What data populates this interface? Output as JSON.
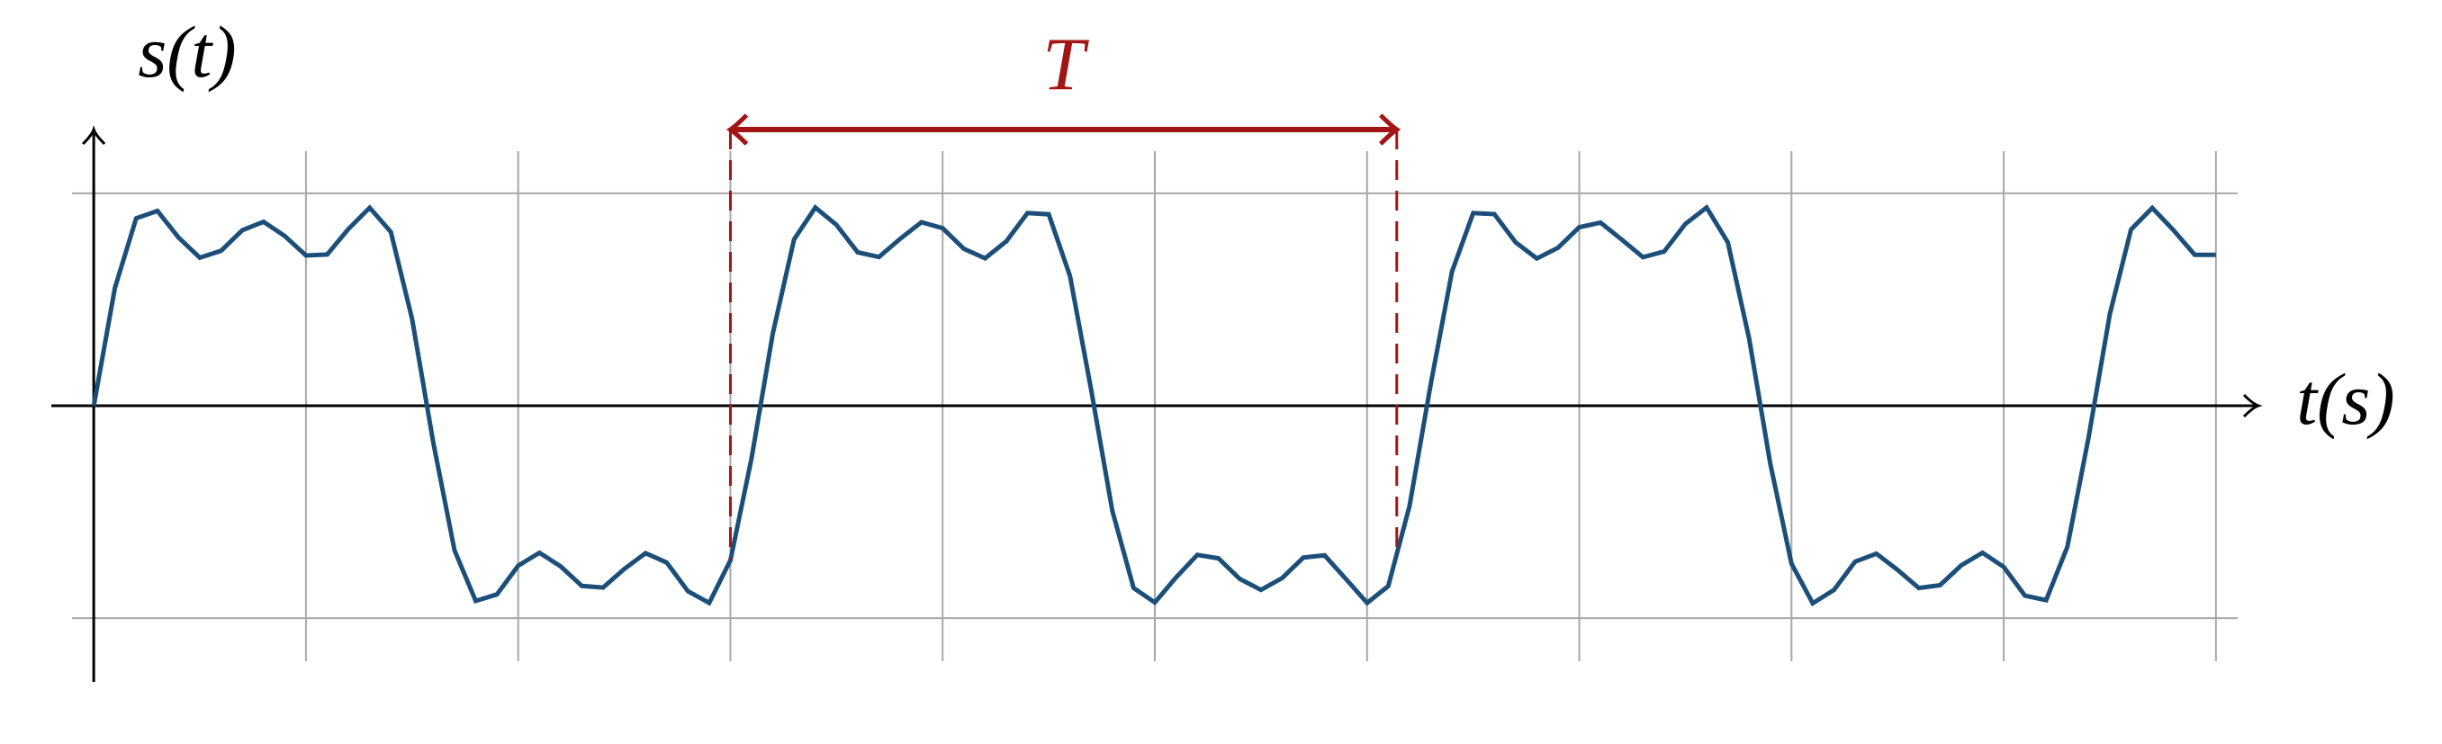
{
  "chart_data": {
    "type": "line",
    "y_label": "s(t)",
    "x_label": "t(s)",
    "annotation": {
      "text": "T",
      "x": [
        3,
        6.14
      ],
      "color": "#a31515"
    },
    "color": "#1b4f7a",
    "xlim": [
      -0.2,
      10.2
    ],
    "ylim": [
      -1.3,
      1.3
    ],
    "xticks": [
      1,
      2,
      3,
      4,
      5,
      6,
      7,
      8,
      9,
      10
    ],
    "yticks": [
      -1,
      1
    ],
    "grid": true,
    "x": [
      0,
      0.1,
      0.2,
      0.3,
      0.4,
      0.5,
      0.6,
      0.7,
      0.8,
      0.9,
      1,
      1.1,
      1.2,
      1.3,
      1.4,
      1.5,
      1.6,
      1.7,
      1.8,
      1.9,
      2,
      2.1,
      2.2,
      2.3,
      2.4,
      2.5,
      2.6,
      2.7,
      2.8,
      2.9,
      3,
      3.1,
      3.2,
      3.3,
      3.4,
      3.5,
      3.6,
      3.7,
      3.8,
      3.9,
      4,
      4.1,
      4.2,
      4.3,
      4.4,
      4.5,
      4.6,
      4.7,
      4.8,
      4.9,
      5,
      5.1,
      5.2,
      5.3,
      5.4,
      5.5,
      5.6,
      5.7,
      5.8,
      5.9,
      6,
      6.1,
      6.2,
      6.3,
      6.4,
      6.5,
      6.6,
      6.7,
      6.8,
      6.9,
      7,
      7.1,
      7.2,
      7.3,
      7.4,
      7.5,
      7.6,
      7.7,
      7.8,
      7.9,
      8,
      8.1,
      8.2,
      8.3,
      8.4,
      8.5,
      8.6,
      8.7,
      8.8,
      8.9,
      9,
      9.1,
      9.2,
      9.3,
      9.4,
      9.5,
      9.6,
      9.7,
      9.8,
      9.9,
      10
    ],
    "values": [
      0,
      0.555,
      0.882,
      0.917,
      0.791,
      0.697,
      0.729,
      0.826,
      0.866,
      0.799,
      0.707,
      0.712,
      0.832,
      0.932,
      0.818,
      0.409,
      -0.174,
      -0.681,
      -0.919,
      -0.888,
      -0.753,
      -0.692,
      -0.756,
      -0.848,
      -0.856,
      -0.768,
      -0.694,
      -0.738,
      -0.873,
      -0.928,
      -0.727,
      -0.246,
      0.341,
      0.783,
      0.933,
      0.851,
      0.722,
      0.7,
      0.786,
      0.864,
      0.836,
      0.739,
      0.694,
      0.774,
      0.907,
      0.901,
      0.611,
      0.074,
      -0.495,
      -0.858,
      -0.926,
      -0.808,
      -0.702,
      -0.718,
      -0.815,
      -0.867,
      -0.811,
      -0.715,
      -0.704,
      -0.815,
      -0.928,
      -0.849,
      -0.473,
      0.101,
      0.631,
      0.907,
      0.902,
      0.769,
      0.693,
      0.744,
      0.84,
      0.862,
      0.782,
      0.699,
      0.726,
      0.856,
      0.933,
      0.769,
      0.317,
      -0.272,
      -0.743,
      -0.93,
      -0.867,
      -0.734,
      -0.696,
      -0.773,
      -0.858,
      -0.845,
      -0.751,
      -0.692,
      -0.759,
      -0.894,
      -0.915,
      -0.664,
      -0.148,
      0.432,
      0.829,
      0.931,
      0.826,
      0.71,
      0.71
    ]
  }
}
